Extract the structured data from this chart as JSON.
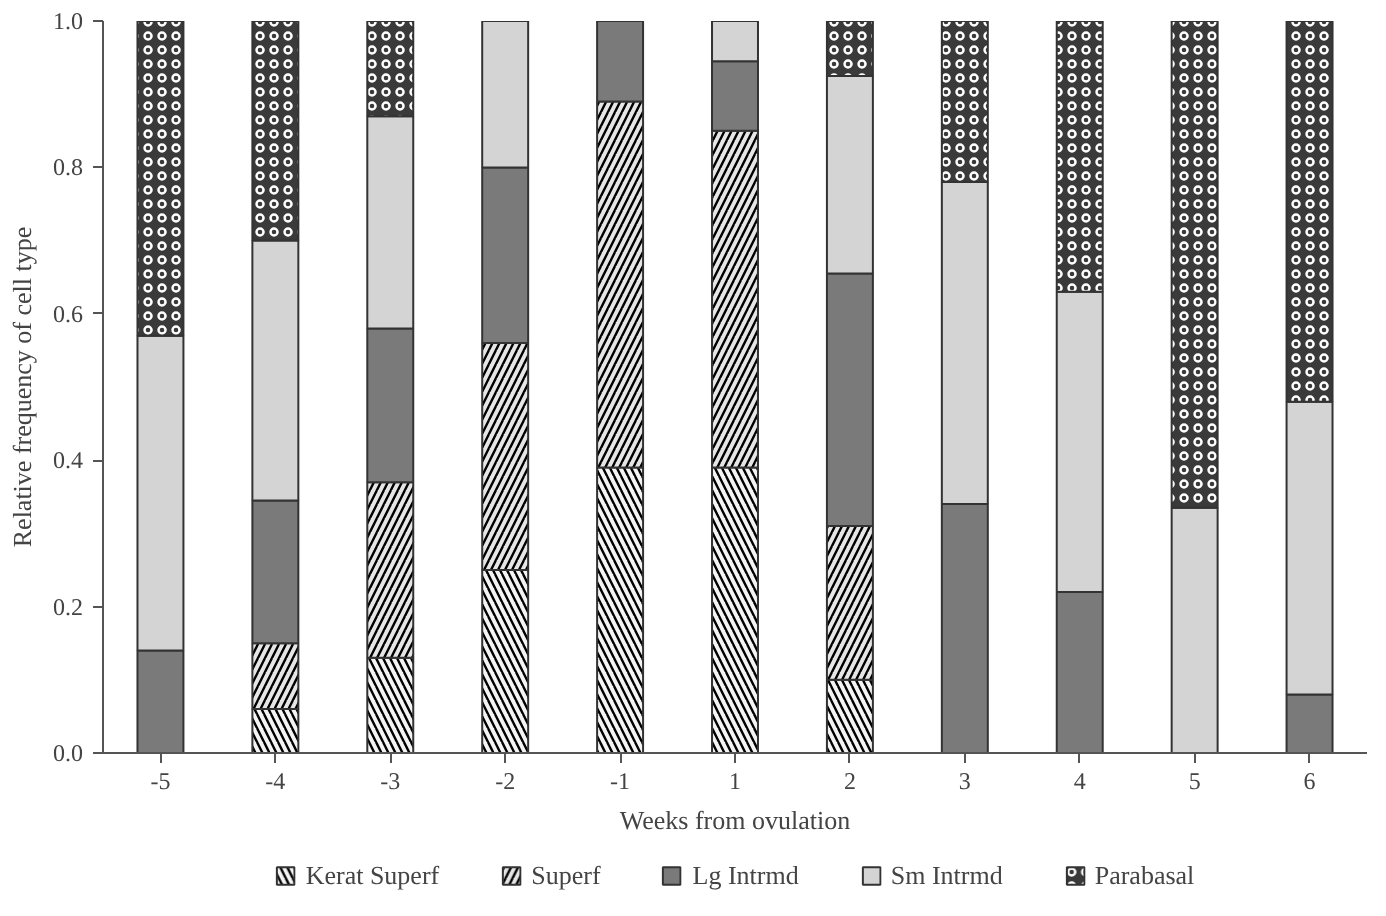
{
  "chart_data": {
    "type": "bar",
    "stacked": true,
    "xlabel": "Weeks from ovulation",
    "ylabel": "Relative frequency of cell type",
    "categories": [
      "-5",
      "-4",
      "-3",
      "-2",
      "-1",
      "1",
      "2",
      "3",
      "4",
      "5",
      "6"
    ],
    "ylim": [
      0,
      1
    ],
    "yticks": [
      {
        "value": 0,
        "label": "0.0"
      },
      {
        "value": 0.2,
        "label": "0.2"
      },
      {
        "value": 0.4,
        "label": "0.4"
      },
      {
        "value": 0.6,
        "label": "0.6"
      },
      {
        "value": 0.8,
        "label": "0.8"
      },
      {
        "value": 1,
        "label": "1.0"
      }
    ],
    "grid": false,
    "legend": "bottom",
    "series": [
      {
        "name": "Kerat Superf",
        "color": "#f4f4f4",
        "values": [
          0,
          0.06,
          0.13,
          0.25,
          0.39,
          0.39,
          0.1,
          0,
          0,
          0,
          0
        ]
      },
      {
        "name": "Superf",
        "color": "#e6e6e6",
        "values": [
          0,
          0.09,
          0.24,
          0.31,
          0.5,
          0.46,
          0.21,
          0,
          0,
          0,
          0
        ]
      },
      {
        "name": "Lg Intrmd",
        "color": "#7a7a7a",
        "values": [
          0.14,
          0.195,
          0.21,
          0.24,
          0.11,
          0.095,
          0.345,
          0.34,
          0.22,
          0,
          0.08
        ]
      },
      {
        "name": "Sm Intrmd",
        "color": "#d4d4d4",
        "values": [
          0.43,
          0.355,
          0.29,
          0.2,
          0,
          0.055,
          0.27,
          0.44,
          0.41,
          0.335,
          0.4
        ]
      },
      {
        "name": "Parabasal",
        "color": "#3a3a3a",
        "values": [
          0.43,
          0.3,
          0.13,
          0,
          0,
          0,
          0.075,
          0.22,
          0.37,
          0.665,
          0.52
        ]
      }
    ]
  }
}
